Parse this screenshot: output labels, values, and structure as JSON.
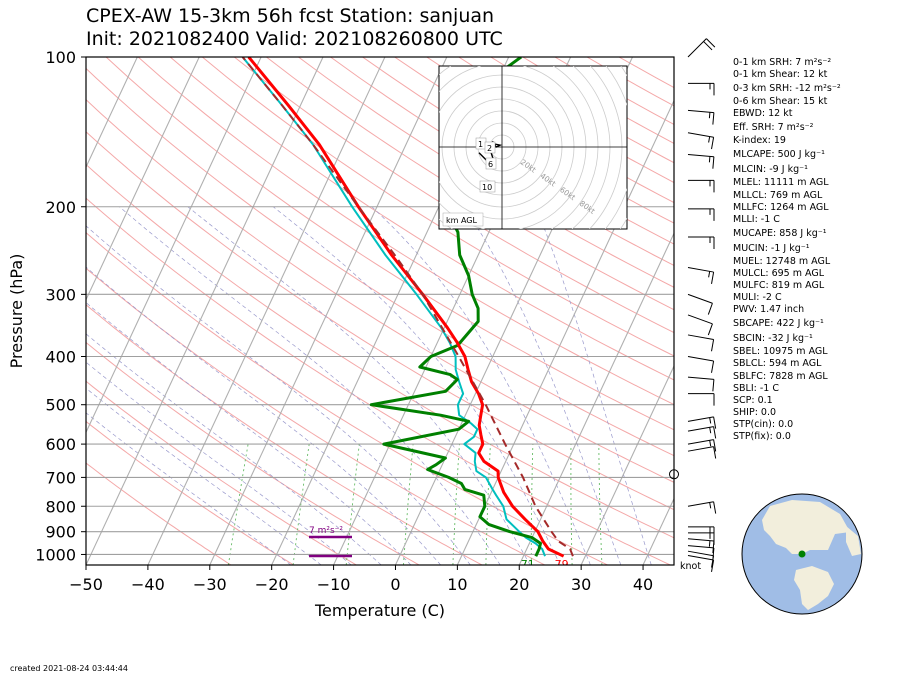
{
  "header": {
    "title_line1": "CPEX-AW 15-3km  56h fcst  Station: sanjuan",
    "title_line2": "Init: 2021082400  Valid: 202108260800 UTC"
  },
  "chart_data": {
    "type": "skew-t",
    "xlabel": "Temperature (C)",
    "ylabel": "Pressure (hPa)",
    "xlim": [
      -50,
      45
    ],
    "ylim": [
      1050,
      100
    ],
    "yscale": "log",
    "xticks": [
      "−50",
      "−40",
      "−30",
      "−20",
      "−10",
      "0",
      "10",
      "20",
      "30",
      "40"
    ],
    "xtick_values": [
      -50,
      -40,
      -30,
      -20,
      -10,
      0,
      10,
      20,
      30,
      40
    ],
    "yticks": [
      "100",
      "200",
      "300",
      "400",
      "500",
      "600",
      "700",
      "800",
      "900",
      "1000"
    ],
    "ytick_values": [
      100,
      200,
      300,
      400,
      500,
      600,
      700,
      800,
      900,
      1000
    ],
    "grid": true,
    "skew_per_decade_C": 37.5,
    "temperature_profile": {
      "color": "#ff0000",
      "points": [
        [
          1008,
          26.5
        ],
        [
          975,
          23.5
        ],
        [
          940,
          22
        ],
        [
          900,
          20.5
        ],
        [
          850,
          17.5
        ],
        [
          800,
          14.5
        ],
        [
          750,
          12
        ],
        [
          700,
          10
        ],
        [
          680,
          9.5
        ],
        [
          650,
          6.5
        ],
        [
          625,
          5
        ],
        [
          600,
          5
        ],
        [
          575,
          4
        ],
        [
          550,
          3
        ],
        [
          525,
          2.5
        ],
        [
          500,
          2
        ],
        [
          475,
          0.5
        ],
        [
          450,
          -1.5
        ],
        [
          425,
          -3
        ],
        [
          400,
          -4.5
        ],
        [
          375,
          -6.8
        ],
        [
          350,
          -9.5
        ],
        [
          300,
          -16
        ],
        [
          250,
          -24
        ],
        [
          200,
          -33
        ],
        [
          150,
          -44
        ],
        [
          125,
          -52
        ],
        [
          100,
          -62
        ]
      ]
    },
    "dewpoint_profile": {
      "color": "#008000",
      "points": [
        [
          1008,
          22
        ],
        [
          975,
          22
        ],
        [
          950,
          21.8
        ],
        [
          925,
          20
        ],
        [
          900,
          16
        ],
        [
          870,
          12
        ],
        [
          840,
          10
        ],
        [
          800,
          10
        ],
        [
          760,
          9
        ],
        [
          740,
          5.5
        ],
        [
          720,
          4.5
        ],
        [
          700,
          2
        ],
        [
          675,
          -2
        ],
        [
          660,
          -1
        ],
        [
          640,
          0
        ],
        [
          600,
          -11
        ],
        [
          560,
          0
        ],
        [
          540,
          1
        ],
        [
          525,
          -4
        ],
        [
          500,
          -16
        ],
        [
          470,
          -5
        ],
        [
          445,
          -4
        ],
        [
          435,
          -5.5
        ],
        [
          420,
          -11
        ],
        [
          400,
          -10
        ],
        [
          380,
          -6.5
        ],
        [
          340,
          -5
        ],
        [
          320,
          -6
        ],
        [
          300,
          -8
        ],
        [
          275,
          -10
        ],
        [
          250,
          -13
        ],
        [
          225,
          -15
        ],
        [
          200,
          -19
        ],
        [
          185,
          -17
        ],
        [
          170,
          -16
        ],
        [
          150,
          -18
        ],
        [
          130,
          -20
        ],
        [
          120,
          -21
        ],
        [
          110,
          -21
        ],
        [
          100,
          -18
        ]
      ]
    },
    "wetbulb_profile": {
      "color": "#00bfbf",
      "points": [
        [
          1008,
          23.5
        ],
        [
          975,
          22.5
        ],
        [
          950,
          21
        ],
        [
          925,
          19
        ],
        [
          900,
          17.5
        ],
        [
          850,
          14.5
        ],
        [
          800,
          13
        ],
        [
          760,
          11
        ],
        [
          740,
          10
        ],
        [
          700,
          8
        ],
        [
          680,
          6
        ],
        [
          650,
          5
        ],
        [
          625,
          4.5
        ],
        [
          600,
          2
        ],
        [
          580,
          3
        ],
        [
          560,
          3
        ],
        [
          545,
          1.5
        ],
        [
          525,
          -1
        ],
        [
          500,
          -2
        ],
        [
          475,
          -2
        ],
        [
          450,
          -3.5
        ],
        [
          425,
          -5
        ],
        [
          400,
          -6
        ],
        [
          375,
          -8
        ],
        [
          350,
          -10.5
        ],
        [
          300,
          -17
        ],
        [
          250,
          -25
        ],
        [
          200,
          -34
        ],
        [
          150,
          -45
        ],
        [
          125,
          -53
        ],
        [
          100,
          -63
        ]
      ]
    },
    "parcel_profile": {
      "color": "#a52a2a",
      "points": [
        [
          1008,
          28
        ],
        [
          975,
          27
        ],
        [
          940,
          24.5
        ],
        [
          900,
          22.7
        ],
        [
          850,
          20.5
        ],
        [
          800,
          18.2
        ],
        [
          700,
          14
        ],
        [
          600,
          8.6
        ],
        [
          500,
          2.5
        ],
        [
          400,
          -5.5
        ],
        [
          300,
          -16
        ],
        [
          250,
          -23.5
        ],
        [
          200,
          -33
        ],
        [
          150,
          -45
        ],
        [
          125,
          -53
        ],
        [
          100,
          -63
        ]
      ]
    },
    "surface_labels": {
      "temperature": "79",
      "dewpoint": "71",
      "temperature_color": "#ff0000",
      "dewpoint_color": "#008000"
    },
    "srh_annotation": {
      "label": "7 m²s⁻²",
      "color": "#800080"
    },
    "wind_units": "knot",
    "wind_barbs": [
      {
        "p": 100,
        "speed": 20,
        "dir": 45
      },
      {
        "p": 113,
        "speed": 15,
        "dir": 90
      },
      {
        "p": 128,
        "speed": 15,
        "dir": 95
      },
      {
        "p": 142,
        "speed": 15,
        "dir": 100
      },
      {
        "p": 157,
        "speed": 15,
        "dir": 95
      },
      {
        "p": 177,
        "speed": 15,
        "dir": 90
      },
      {
        "p": 202,
        "speed": 15,
        "dir": 90
      },
      {
        "p": 230,
        "speed": 15,
        "dir": 90
      },
      {
        "p": 265,
        "speed": 15,
        "dir": 100
      },
      {
        "p": 300,
        "speed": 10,
        "dir": 110
      },
      {
        "p": 330,
        "speed": 10,
        "dir": 110
      },
      {
        "p": 362,
        "speed": 10,
        "dir": 100
      },
      {
        "p": 400,
        "speed": 10,
        "dir": 100
      },
      {
        "p": 440,
        "speed": 10,
        "dir": 95
      },
      {
        "p": 475,
        "speed": 10,
        "dir": 90
      },
      {
        "p": 540,
        "speed": 15,
        "dir": 80
      },
      {
        "p": 565,
        "speed": 15,
        "dir": 80
      },
      {
        "p": 600,
        "speed": 15,
        "dir": 80
      },
      {
        "p": 620,
        "speed": 10,
        "dir": 80
      },
      {
        "p": 800,
        "speed": 15,
        "dir": 80
      },
      {
        "p": 880,
        "speed": 15,
        "dir": 90
      },
      {
        "p": 905,
        "speed": 15,
        "dir": 90
      },
      {
        "p": 930,
        "speed": 15,
        "dir": 95
      },
      {
        "p": 960,
        "speed": 10,
        "dir": 95
      },
      {
        "p": 985,
        "speed": 10,
        "dir": 100
      },
      {
        "p": 1005,
        "speed": 10,
        "dir": 100
      }
    ],
    "calm_marker_p": 690,
    "hodograph": {
      "rings_kt": [
        20,
        40,
        60,
        80
      ],
      "ring_labels": [
        "20kt",
        "40kt",
        "60kt",
        "80kt"
      ],
      "level_labels": [
        "1",
        "2",
        "6",
        "10"
      ],
      "box_label": "km AGL",
      "trace_uv": [
        [
          -5,
          3
        ],
        [
          -3,
          0
        ],
        [
          -1,
          1
        ],
        [
          -6,
          2
        ],
        [
          -6,
          -2
        ],
        [
          -5,
          -5
        ],
        [
          -4,
          -8
        ],
        [
          -5,
          -10
        ],
        [
          -8,
          -7
        ],
        [
          -12,
          -3
        ]
      ]
    }
  },
  "params": [
    "0-1 km SRH: 7 m²s⁻²",
    "0-1 km Shear: 12 kt",
    "0-3 km SRH: -12 m²s⁻²",
    "0-6 km Shear: 15 kt",
    "EBWD: 12 kt",
    "Eff. SRH: 7 m²s⁻²",
    "K-index: 19",
    "MLCAPE: 500 J kg⁻¹",
    "MLCIN: -9 J kg⁻¹",
    "MLEL: 11111 m AGL",
    "MLLCL: 769 m AGL",
    "MLLFC: 1264 m AGL",
    "MLLI: -1 C",
    "MUCAPE: 858 J kg⁻¹",
    "MUCIN: -1 J kg⁻¹",
    "MUEL: 12748 m AGL",
    "MULCL: 695 m AGL",
    "MULFC: 819 m AGL",
    "MULI: -2 C",
    "PWV: 1.47 inch",
    "SBCAPE: 422 J kg⁻¹",
    "SBCIN: -32 J kg⁻¹",
    "SBEL: 10975 m AGL",
    "SBLCL: 594 m AGL",
    "SBLFC: 7828 m AGL",
    "SBLI: -1 C",
    "SCP: 0.1",
    "SHIP: 0.0",
    "STP(cin): 0.0",
    "STP(fix): 0.0"
  ],
  "footer": {
    "created": "created 2021-08-24 03:44:44"
  },
  "globe": {
    "ocean_color": "#a0bde6",
    "land_color": "#f2eedc",
    "station_color": "#008000"
  }
}
